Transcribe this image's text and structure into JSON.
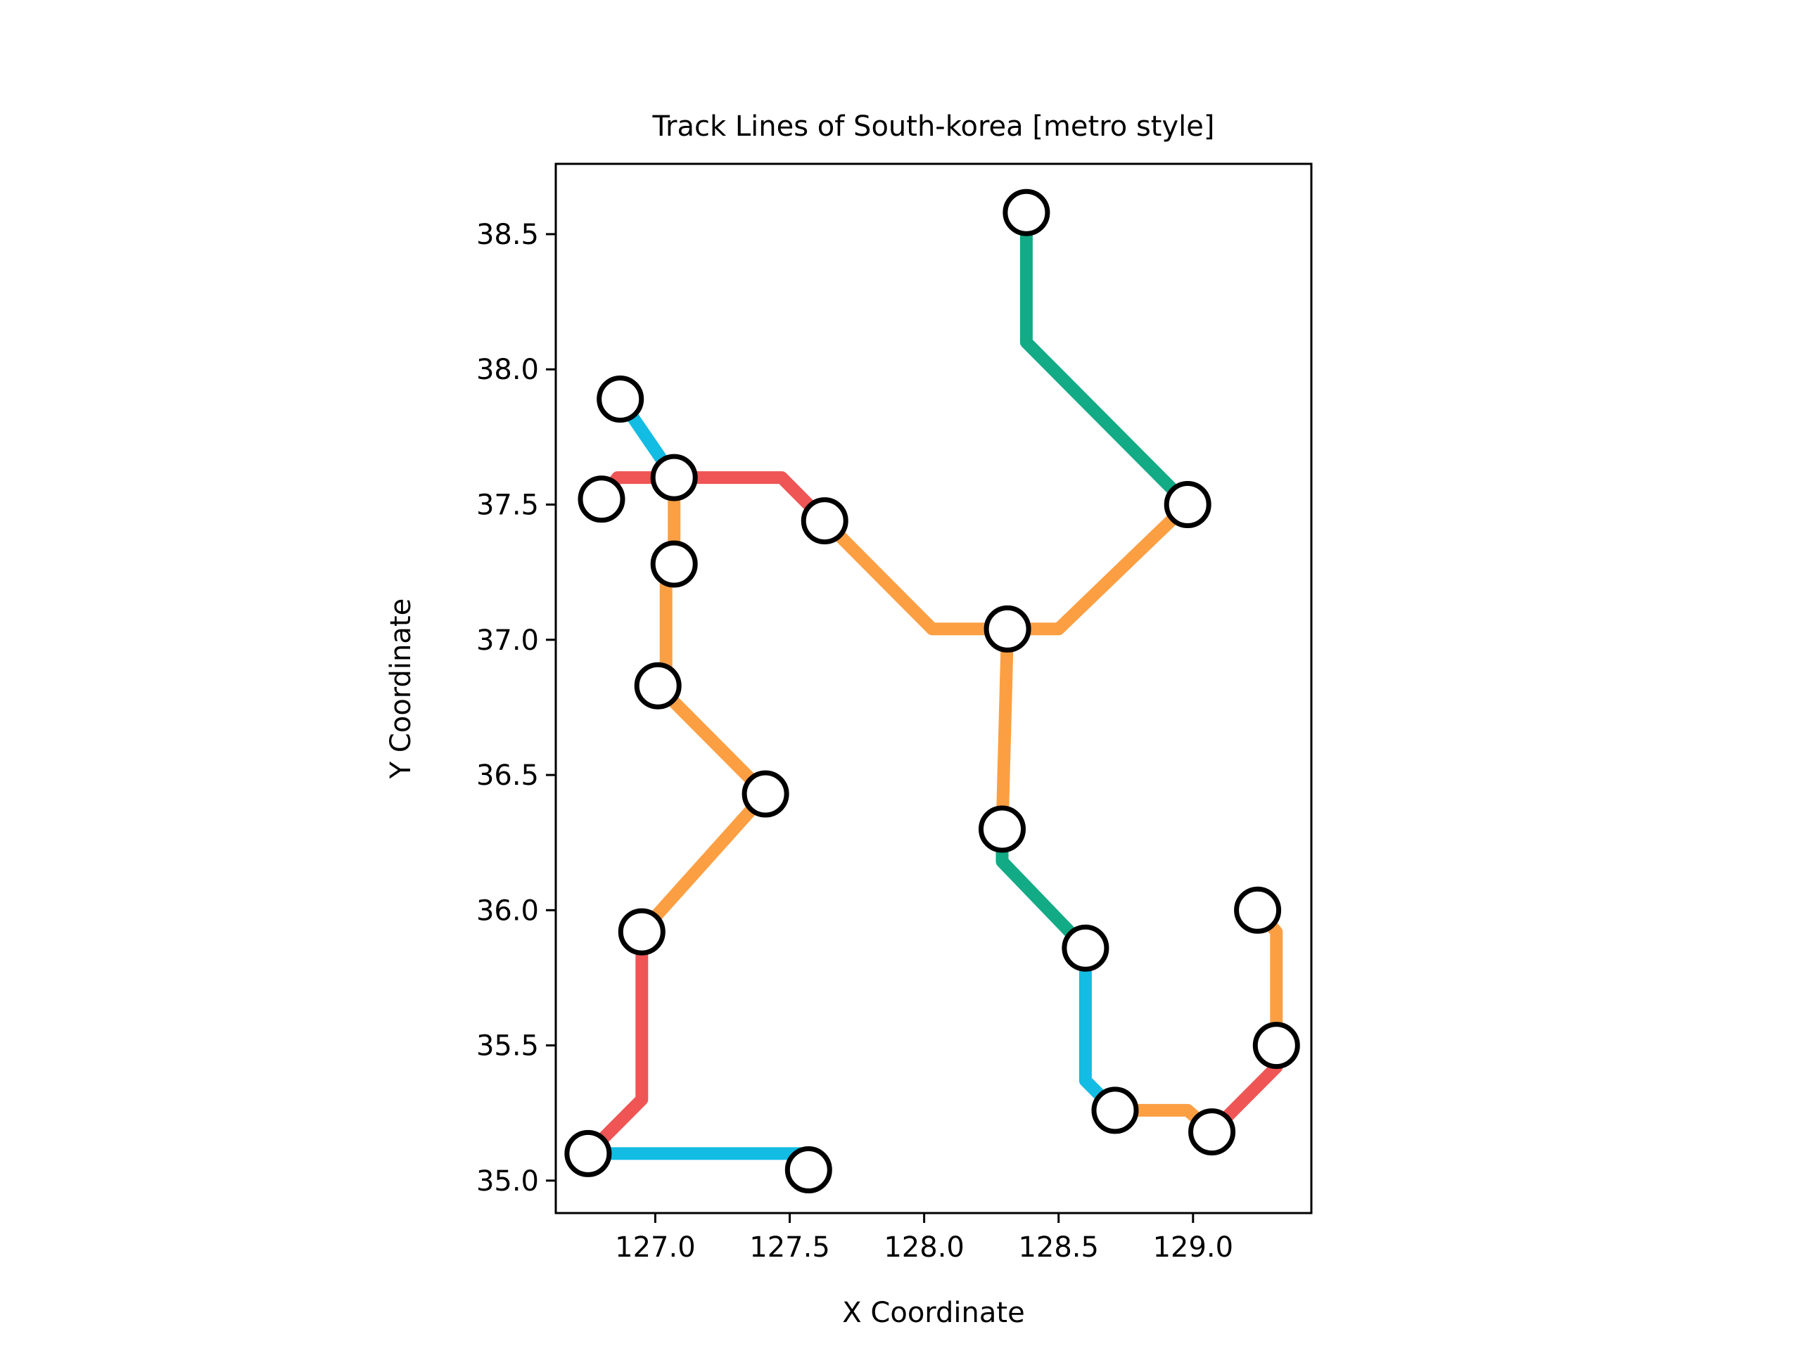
{
  "chart_data": {
    "type": "line",
    "title": "Track Lines of South-korea [metro style]",
    "xlabel": "X Coordinate",
    "ylabel": "Y Coordinate",
    "xlim": [
      126.63,
      129.44
    ],
    "ylim": [
      34.88,
      38.76
    ],
    "x_ticks": [
      127.0,
      127.5,
      128.0,
      128.5,
      129.0
    ],
    "x_tick_labels": [
      "127.0",
      "127.5",
      "128.0",
      "128.5",
      "129.0"
    ],
    "y_ticks": [
      35.0,
      35.5,
      36.0,
      36.5,
      37.0,
      37.5,
      38.0,
      38.5
    ],
    "y_tick_labels": [
      "35.0",
      "35.5",
      "36.0",
      "36.5",
      "37.0",
      "37.5",
      "38.0",
      "38.5"
    ],
    "grid": false,
    "colors": {
      "red": "#ef5555",
      "orange": "#fc9f43",
      "blue": "#12bce3",
      "green": "#12ab86",
      "station_fill": "#ffffff",
      "station_edge": "#000000"
    },
    "segments": [
      {
        "color": "green",
        "points": [
          [
            128.38,
            38.58
          ],
          [
            128.38,
            38.1
          ],
          [
            128.98,
            37.5
          ]
        ]
      },
      {
        "color": "orange",
        "points": [
          [
            128.98,
            37.5
          ],
          [
            128.5,
            37.04
          ],
          [
            128.31,
            37.04
          ]
        ]
      },
      {
        "color": "orange",
        "points": [
          [
            128.31,
            37.04
          ],
          [
            128.03,
            37.04
          ],
          [
            127.63,
            37.44
          ]
        ]
      },
      {
        "color": "red",
        "points": [
          [
            127.63,
            37.44
          ],
          [
            127.47,
            37.6
          ],
          [
            127.07,
            37.6
          ]
        ]
      },
      {
        "color": "red",
        "points": [
          [
            127.07,
            37.6
          ],
          [
            126.86,
            37.6
          ],
          [
            126.8,
            37.52
          ]
        ]
      },
      {
        "color": "blue",
        "points": [
          [
            126.87,
            37.89
          ],
          [
            127.07,
            37.6
          ]
        ]
      },
      {
        "color": "orange",
        "points": [
          [
            127.07,
            37.6
          ],
          [
            127.07,
            37.28
          ]
        ]
      },
      {
        "color": "orange",
        "points": [
          [
            127.07,
            37.28
          ],
          [
            127.04,
            37.28
          ],
          [
            127.04,
            36.83
          ],
          [
            127.01,
            36.83
          ]
        ]
      },
      {
        "color": "orange",
        "points": [
          [
            127.01,
            36.83
          ],
          [
            127.41,
            36.43
          ]
        ]
      },
      {
        "color": "orange",
        "points": [
          [
            127.41,
            36.43
          ],
          [
            126.95,
            35.92
          ]
        ]
      },
      {
        "color": "red",
        "points": [
          [
            126.95,
            35.92
          ],
          [
            126.95,
            35.3
          ],
          [
            126.75,
            35.1
          ]
        ]
      },
      {
        "color": "blue",
        "points": [
          [
            126.75,
            35.1
          ],
          [
            127.54,
            35.1
          ],
          [
            127.57,
            35.04
          ]
        ]
      },
      {
        "color": "orange",
        "points": [
          [
            128.31,
            37.04
          ],
          [
            128.29,
            36.3
          ]
        ]
      },
      {
        "color": "green",
        "points": [
          [
            128.29,
            36.3
          ],
          [
            128.29,
            36.18
          ],
          [
            128.6,
            35.86
          ]
        ]
      },
      {
        "color": "blue",
        "points": [
          [
            128.6,
            35.86
          ],
          [
            128.6,
            35.37
          ],
          [
            128.71,
            35.26
          ]
        ]
      },
      {
        "color": "orange",
        "points": [
          [
            128.71,
            35.26
          ],
          [
            128.98,
            35.26
          ],
          [
            129.07,
            35.18
          ]
        ]
      },
      {
        "color": "red",
        "points": [
          [
            129.07,
            35.18
          ],
          [
            129.31,
            35.42
          ],
          [
            129.31,
            35.5
          ]
        ]
      },
      {
        "color": "orange",
        "points": [
          [
            129.31,
            35.5
          ],
          [
            129.31,
            35.92
          ],
          [
            129.24,
            36.0
          ]
        ]
      }
    ],
    "stations": [
      [
        128.38,
        38.58
      ],
      [
        128.98,
        37.5
      ],
      [
        128.31,
        37.04
      ],
      [
        127.63,
        37.44
      ],
      [
        127.07,
        37.6
      ],
      [
        126.8,
        37.52
      ],
      [
        126.87,
        37.89
      ],
      [
        127.07,
        37.28
      ],
      [
        127.01,
        36.83
      ],
      [
        127.41,
        36.43
      ],
      [
        126.95,
        35.92
      ],
      [
        126.75,
        35.1
      ],
      [
        127.57,
        35.04
      ],
      [
        128.29,
        36.3
      ],
      [
        128.6,
        35.86
      ],
      [
        128.71,
        35.26
      ],
      [
        129.07,
        35.18
      ],
      [
        129.31,
        35.5
      ],
      [
        129.24,
        36.0
      ]
    ]
  }
}
